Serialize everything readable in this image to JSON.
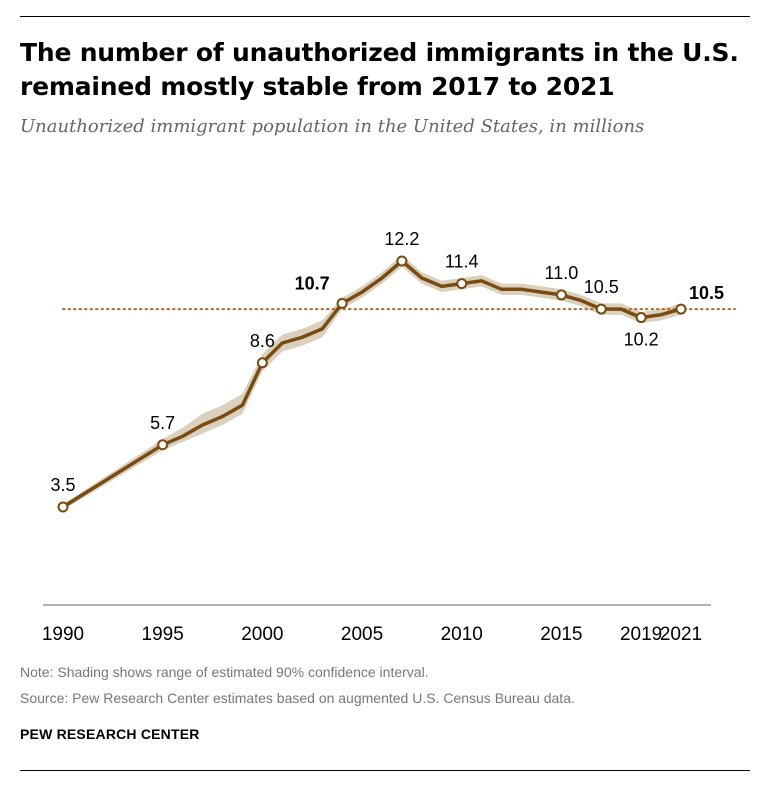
{
  "header": {
    "title": "The number of unauthorized immigrants in the U.S. remained mostly stable from 2017 to 2021",
    "subtitle": "Unauthorized immigrant population in the United States, in millions"
  },
  "footer": {
    "note": "Note: Shading shows range of estimated 90% confidence interval.",
    "source": "Source: Pew Research Center estimates based on augmented U.S. Census Bureau data.",
    "brand": "PEW RESEARCH CENTER"
  },
  "colors": {
    "line": "#7a4b10",
    "band": "#d9d1bd",
    "accent": "#b5672a",
    "reference_line": "#b5672a",
    "axis": "#999999"
  },
  "chart_data": {
    "type": "line",
    "title": "The number of unauthorized immigrants in the U.S. remained mostly stable from 2017 to 2021",
    "subtitle": "Unauthorized immigrant population in the United States, in millions",
    "xlabel": "",
    "ylabel": "",
    "x_ticks": [
      1990,
      1995,
      2000,
      2005,
      2010,
      2015,
      2019,
      2021
    ],
    "xlim": [
      1990,
      2022
    ],
    "ylim": [
      2.5,
      12.5
    ],
    "grid": false,
    "reference_line": {
      "y": 10.5,
      "style": "dotted"
    },
    "series": [
      {
        "x": [
          1990,
          1995,
          1996,
          1997,
          1998,
          1999,
          2000,
          2001,
          2002,
          2003,
          2004,
          2005,
          2006,
          2007,
          2008,
          2009,
          2010,
          2011,
          2012,
          2013,
          2014,
          2015,
          2016,
          2017,
          2018,
          2019,
          2020,
          2021
        ],
        "values": [
          3.5,
          5.7,
          6.0,
          6.4,
          6.7,
          7.1,
          8.6,
          9.3,
          9.5,
          9.8,
          10.7,
          11.1,
          11.6,
          12.2,
          11.6,
          11.3,
          11.4,
          11.5,
          11.2,
          11.2,
          11.1,
          11.0,
          10.8,
          10.5,
          10.5,
          10.2,
          10.3,
          10.5
        ],
        "ci_low": [
          3.4,
          5.5,
          5.8,
          6.1,
          6.4,
          6.8,
          8.3,
          9.0,
          9.2,
          9.5,
          10.5,
          10.9,
          11.4,
          12.0,
          11.4,
          11.1,
          11.2,
          11.3,
          11.0,
          11.0,
          10.9,
          10.8,
          10.6,
          10.3,
          10.3,
          10.0,
          10.1,
          10.3
        ],
        "ci_high": [
          3.6,
          5.9,
          6.3,
          6.8,
          7.1,
          7.5,
          8.9,
          9.6,
          9.8,
          10.1,
          10.9,
          11.3,
          11.8,
          12.4,
          11.8,
          11.5,
          11.6,
          11.7,
          11.4,
          11.4,
          11.3,
          11.2,
          11.0,
          10.7,
          10.7,
          10.4,
          10.5,
          10.7
        ],
        "highlighted_x": [
          1990,
          1995,
          2000,
          2004,
          2007,
          2010,
          2015,
          2017,
          2019,
          2021
        ]
      }
    ],
    "data_labels": [
      {
        "x": 1990,
        "text": "3.5",
        "position": "above",
        "style": "normal"
      },
      {
        "x": 1995,
        "text": "5.7",
        "position": "above",
        "style": "normal"
      },
      {
        "x": 2000,
        "text": "8.6",
        "position": "above",
        "style": "normal"
      },
      {
        "x": 2004,
        "text": "10.7",
        "position": "above-left",
        "style": "bold"
      },
      {
        "x": 2007,
        "text": "12.2",
        "position": "above",
        "style": "normal"
      },
      {
        "x": 2010,
        "text": "11.4",
        "position": "above",
        "style": "normal"
      },
      {
        "x": 2015,
        "text": "11.0",
        "position": "above",
        "style": "normal"
      },
      {
        "x": 2017,
        "text": "10.5",
        "position": "above",
        "style": "normal"
      },
      {
        "x": 2019,
        "text": "10.2",
        "position": "below",
        "style": "normal"
      },
      {
        "x": 2021,
        "text": "10.5",
        "position": "right",
        "style": "accent"
      }
    ]
  }
}
